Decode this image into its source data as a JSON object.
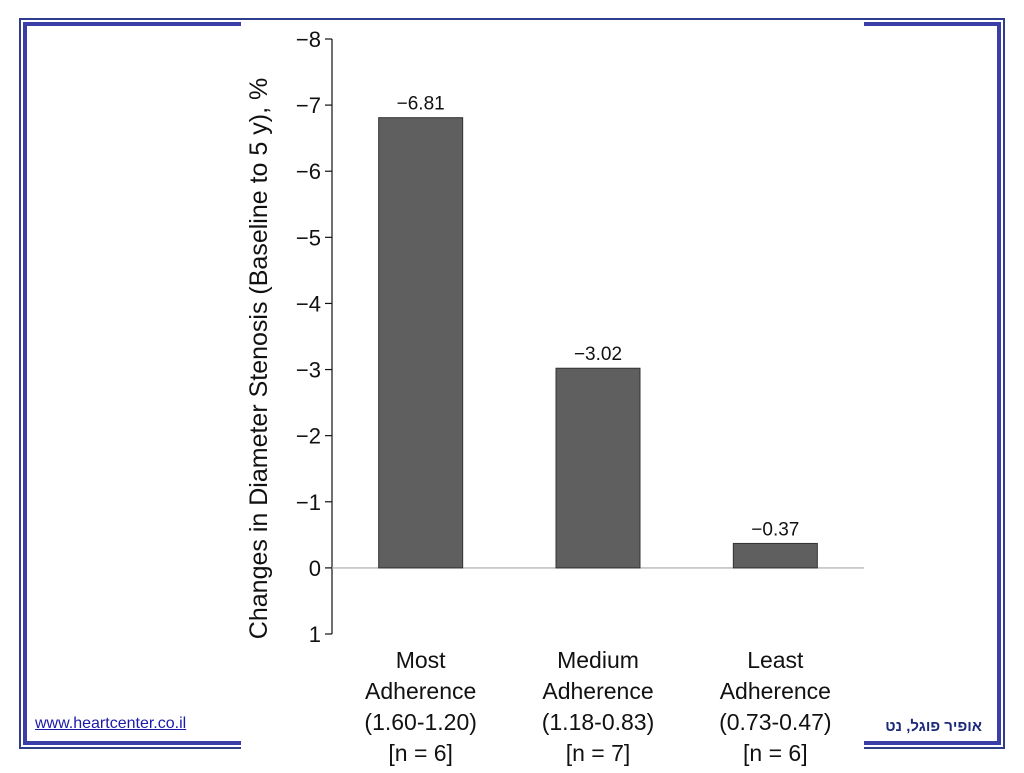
{
  "footer": {
    "link": "www.heartcenter.co.il",
    "author": "אופיר פוגל, נט"
  },
  "colors": {
    "frame": "#3b3ea8",
    "bar": "#5f5f5f",
    "link": "#1a1aaa"
  },
  "chart_data": {
    "type": "bar",
    "ylabel": "Changes in Diameter Stenosis (Baseline to 5 y), %",
    "xlabel": "",
    "ylim": [
      1,
      -8
    ],
    "y_inverted": true,
    "yticks": [
      "−8",
      "−7",
      "−6",
      "−5",
      "−4",
      "−3",
      "−2",
      "−1",
      "0",
      "1"
    ],
    "ytick_values": [
      -8,
      -7,
      -6,
      -5,
      -4,
      -3,
      -2,
      -1,
      0,
      1
    ],
    "grid": false,
    "categories": [
      {
        "lines": [
          "Most",
          "Adherence",
          "(1.60-1.20)",
          "[n = 6]"
        ]
      },
      {
        "lines": [
          "Medium",
          "Adherence",
          "(1.18-0.83)",
          "[n = 7]"
        ]
      },
      {
        "lines": [
          "Least",
          "Adherence",
          "(0.73-0.47)",
          "[n = 6]"
        ]
      }
    ],
    "values": [
      -6.81,
      -3.02,
      -0.37
    ],
    "value_labels": [
      "−6.81",
      "−3.02",
      "−0.37"
    ]
  }
}
